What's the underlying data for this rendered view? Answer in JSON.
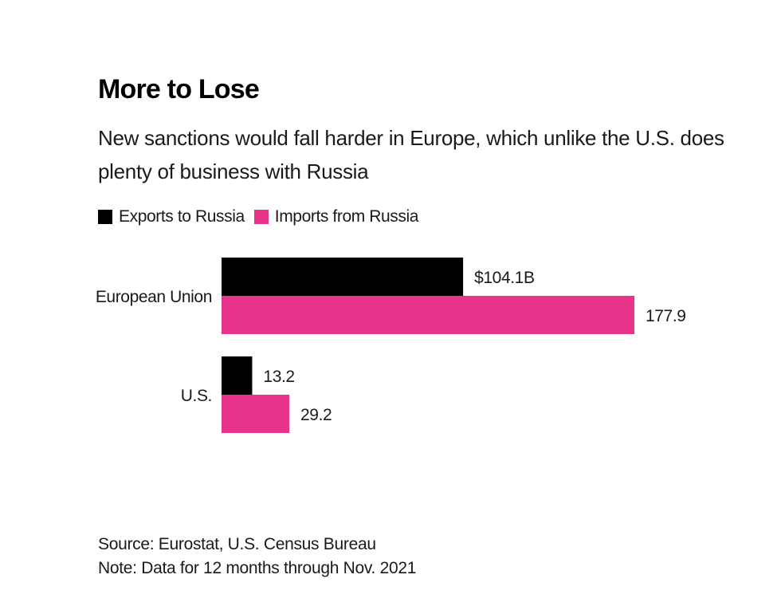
{
  "title": "More to Lose",
  "subtitle": "New sanctions would fall harder in Europe, which unlike the U.S. does plenty of business with Russia",
  "legend": [
    {
      "label": "Exports to Russia",
      "color": "#000000"
    },
    {
      "label": "Imports from Russia",
      "color": "#e8338a"
    }
  ],
  "chart_data": {
    "type": "bar",
    "orientation": "horizontal",
    "categories": [
      "European Union",
      "U.S."
    ],
    "series": [
      {
        "name": "Exports to Russia",
        "values": [
          104.1,
          13.2
        ],
        "labels": [
          "$104.1B",
          "13.2"
        ],
        "color": "#000000"
      },
      {
        "name": "Imports from Russia",
        "values": [
          177.9,
          29.2
        ],
        "labels": [
          "177.9",
          "29.2"
        ],
        "color": "#e8338a"
      }
    ],
    "title": "More to Lose",
    "xlabel": "",
    "ylabel": "",
    "grid": false,
    "legend_position": "top-left"
  },
  "source": "Source: Eurostat, U.S. Census Bureau",
  "note": "Note: Data for 12 months through Nov. 2021"
}
